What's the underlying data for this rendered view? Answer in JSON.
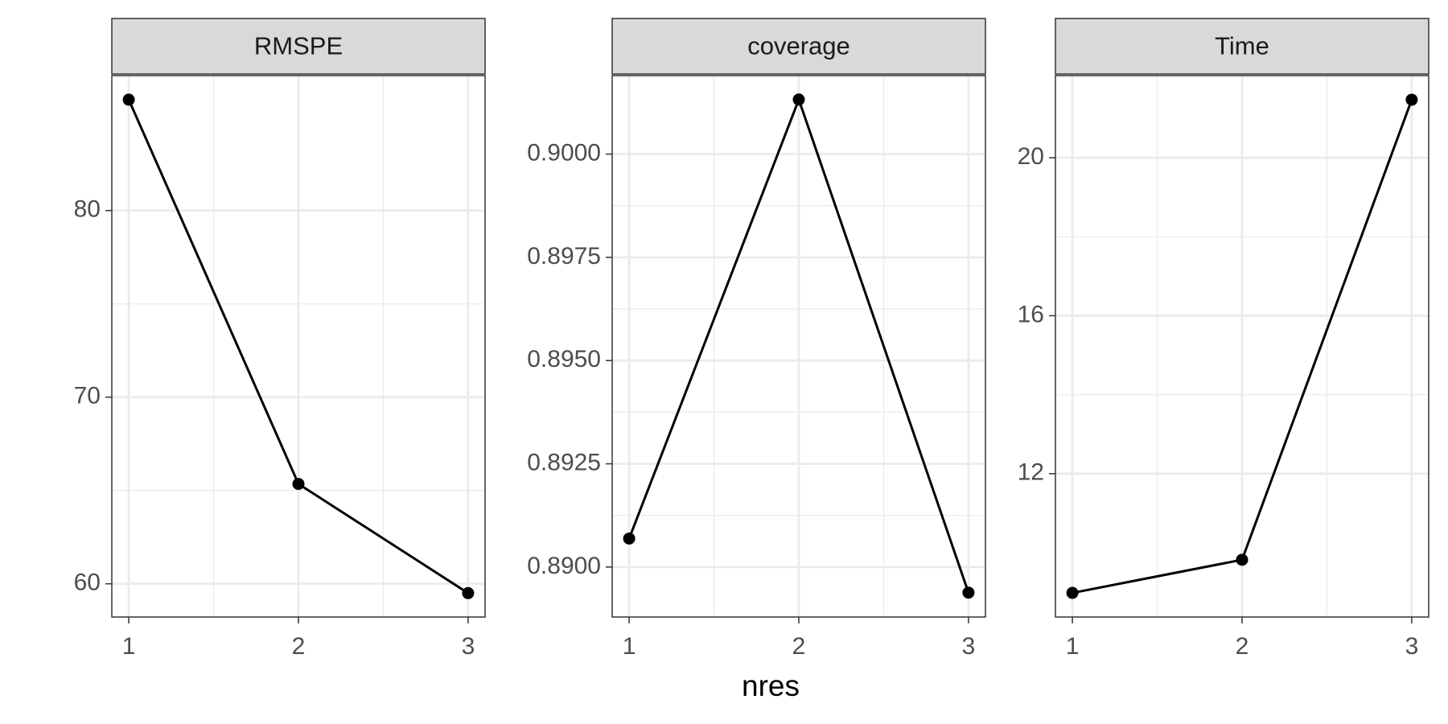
{
  "xlabel": "nres",
  "chart_data": [
    {
      "type": "line",
      "title": "RMSPE",
      "x": [
        1,
        2,
        3
      ],
      "values": [
        85.94,
        65.35,
        59.5
      ],
      "color": "#000000",
      "xlim": [
        0.9,
        3.1
      ],
      "xticks": [
        1,
        2,
        3
      ],
      "ylim": [
        58.22,
        87.23
      ],
      "yticks": [
        60,
        70,
        80
      ],
      "grid": true
    },
    {
      "type": "line",
      "title": "coverage",
      "x": [
        1,
        2,
        3
      ],
      "values": [
        0.89069,
        0.90132,
        0.88938
      ],
      "color": "#000000",
      "xlim": [
        0.9,
        3.1
      ],
      "xticks": [
        1,
        2,
        3
      ],
      "ylim": [
        0.88879,
        0.9019
      ],
      "yticks": [
        {
          "value": 0.89,
          "label": "0.8900"
        },
        {
          "value": 0.8925,
          "label": "0.8925"
        },
        {
          "value": 0.895,
          "label": "0.8950"
        },
        {
          "value": 0.8975,
          "label": "0.8975"
        },
        {
          "value": 0.9,
          "label": "0.9000"
        }
      ],
      "grid": true
    },
    {
      "type": "line",
      "title": "Time",
      "x": [
        1,
        2,
        3
      ],
      "values": [
        8.98,
        9.82,
        21.47
      ],
      "color": "#000000",
      "xlim": [
        0.9,
        3.1
      ],
      "xticks": [
        1,
        2,
        3
      ],
      "ylim": [
        8.37,
        22.08
      ],
      "yticks": [
        12,
        16,
        20
      ],
      "grid": true
    }
  ]
}
